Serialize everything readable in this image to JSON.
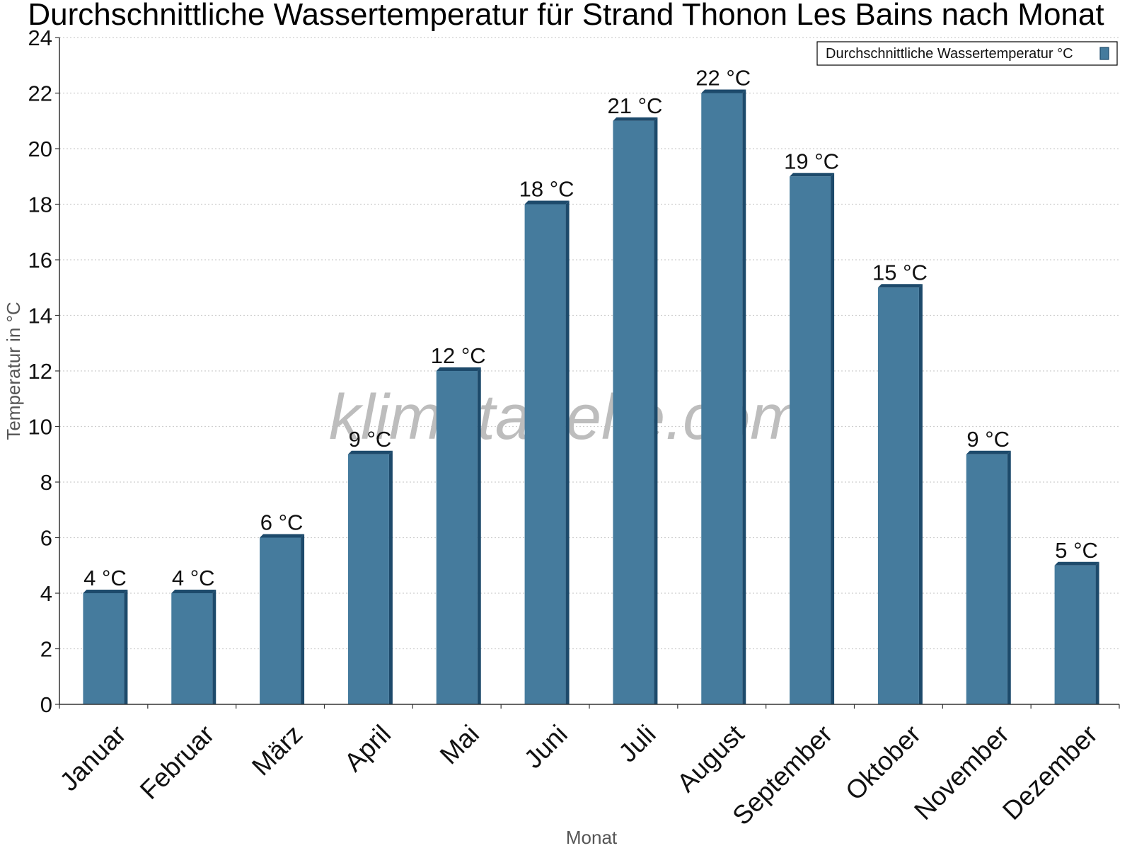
{
  "chart_data": {
    "type": "bar",
    "title": "Durchschnittliche Wassertemperatur für Strand Thonon Les Bains nach Monat",
    "xlabel": "Monat",
    "ylabel": "Temperatur in °C",
    "categories": [
      "Januar",
      "Februar",
      "März",
      "April",
      "Mai",
      "Juni",
      "Juli",
      "August",
      "September",
      "Oktober",
      "November",
      "Dezember"
    ],
    "series": [
      {
        "name": "Durchschnittliche Wassertemperatur °C",
        "values": [
          4,
          4,
          6,
          9,
          12,
          18,
          21,
          22,
          19,
          15,
          9,
          5
        ],
        "labels": [
          "4 °C",
          "4 °C",
          "6 °C",
          "9 °C",
          "12 °C",
          "18 °C",
          "21 °C",
          "22 °C",
          "19 °C",
          "15 °C",
          "9 °C",
          "5 °C"
        ]
      }
    ],
    "ylim": [
      0,
      24
    ],
    "yticks": [
      "0",
      "2",
      "4",
      "6",
      "8",
      "10",
      "12",
      "14",
      "16",
      "18",
      "20",
      "22",
      "24"
    ],
    "grid": true,
    "legend_position": "top-right",
    "watermark": "klimatabelle.com",
    "colors": {
      "bar_face": "#457b9d",
      "bar_side": "#1d4a6b",
      "grid": "#cfcfcf",
      "axis": "#333333"
    }
  }
}
